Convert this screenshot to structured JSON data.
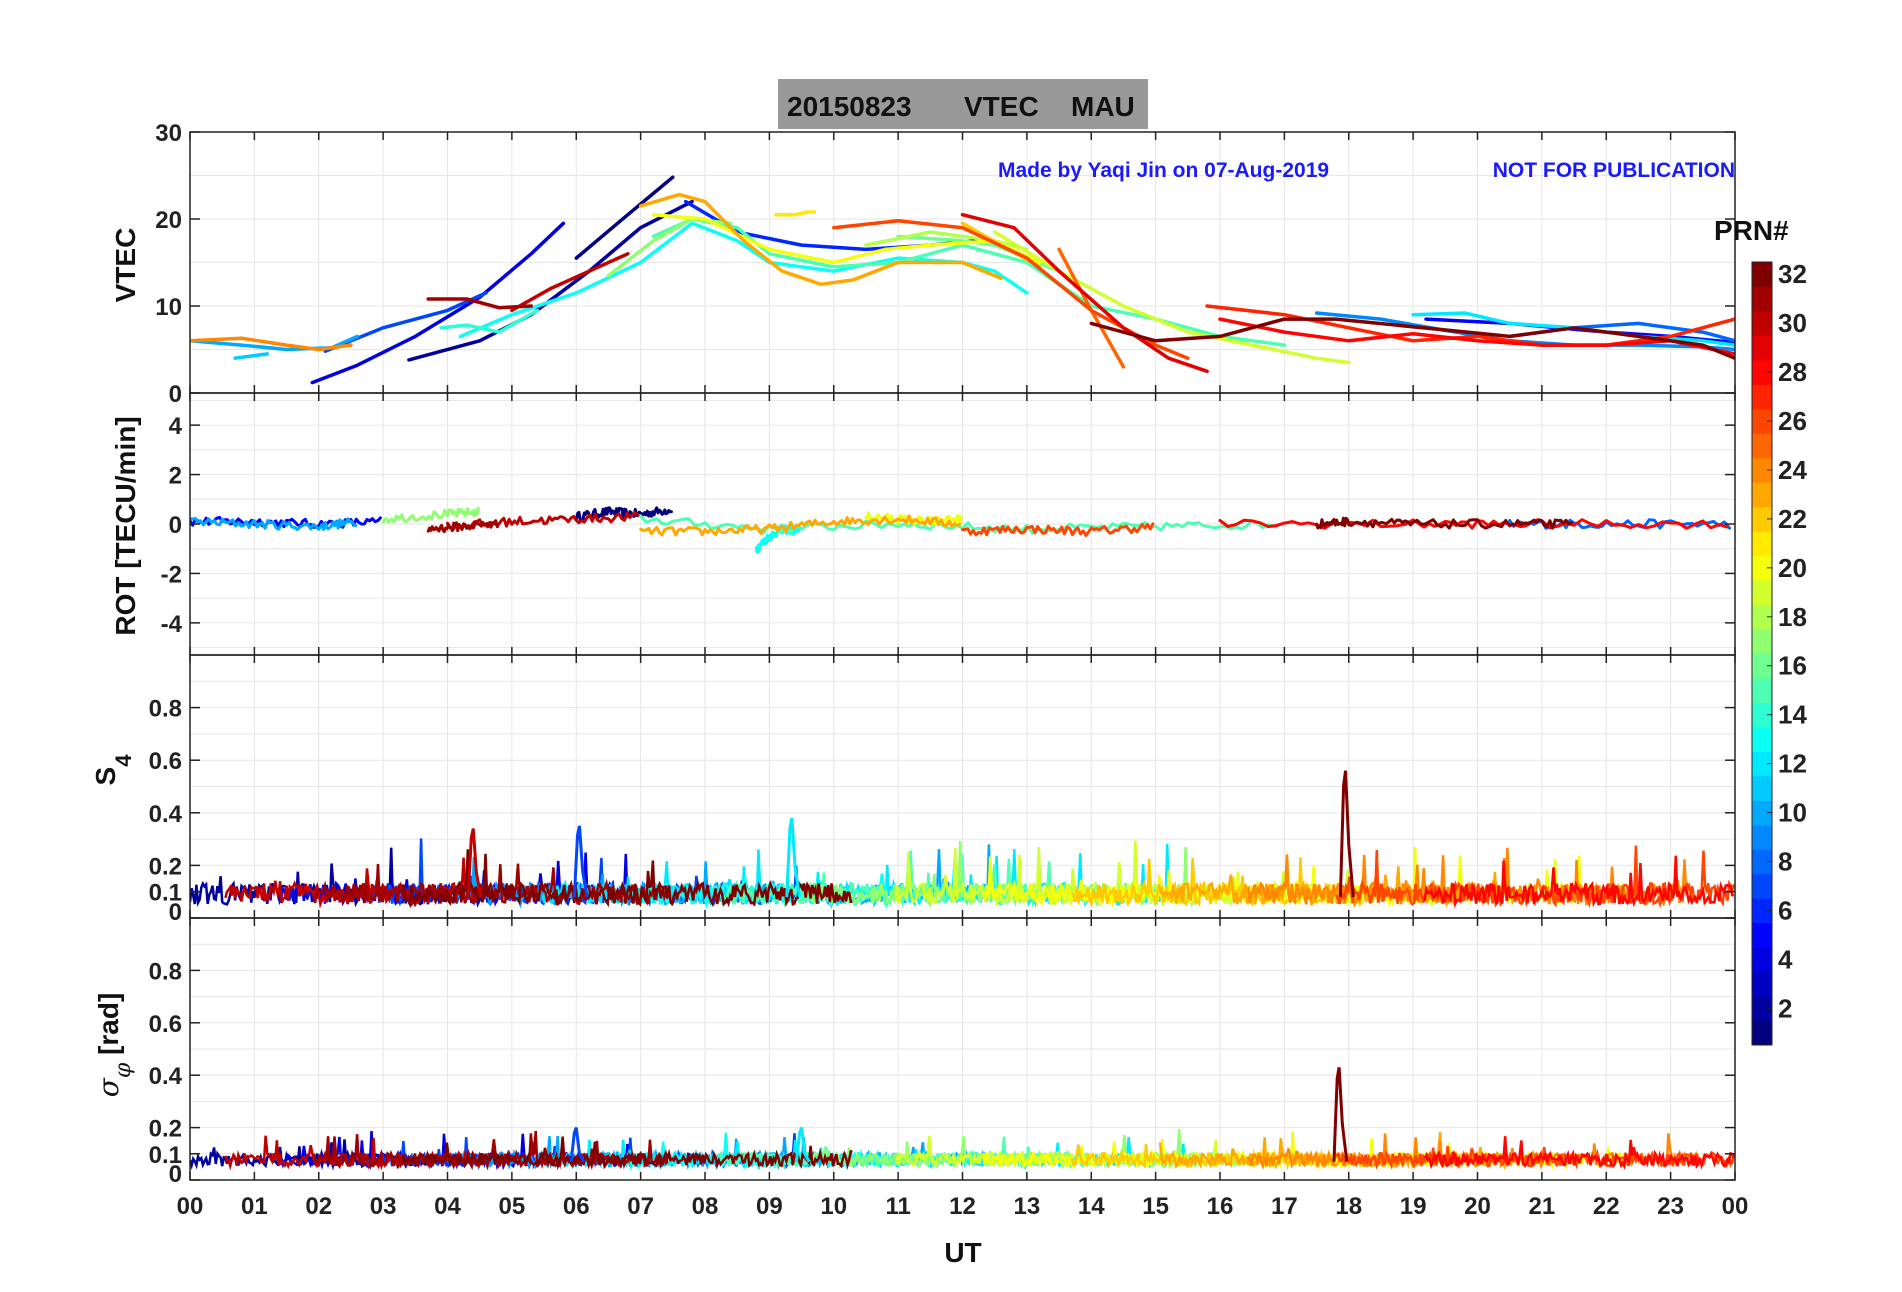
{
  "figure": {
    "title_date": "20150823",
    "title_param": "VTEC",
    "title_station": "MAU",
    "credit": "Made by Yaqi Jin on 07-Aug-2019",
    "notice": "NOT FOR PUBLICATION",
    "xlabel": "UT",
    "colorbar_label": "PRN#",
    "colors": {
      "title_bg": "#999999",
      "credit_text": "#1a1aff",
      "grid": "#e6e6e6"
    }
  },
  "chart_data": [
    {
      "type": "line",
      "panel": "vtec",
      "ylabel": "VTEC",
      "ylim": [
        0,
        30
      ],
      "yticks": [
        "0",
        "10",
        "20",
        "30"
      ],
      "xlim": [
        0,
        24
      ],
      "xticks": [
        "00",
        "01",
        "02",
        "03",
        "04",
        "05",
        "06",
        "07",
        "08",
        "09",
        "10",
        "11",
        "12",
        "13",
        "14",
        "15",
        "16",
        "17",
        "18",
        "19",
        "20",
        "21",
        "22",
        "23",
        "00"
      ],
      "series": [
        {
          "prn": 1,
          "x": [
            6.0,
            6.8,
            7.5
          ],
          "y": [
            15.5,
            20.5,
            24.8
          ]
        },
        {
          "prn": 2,
          "x": [
            3.4,
            4.5,
            5.3,
            6.2,
            7.0,
            7.8
          ],
          "y": [
            3.8,
            6.0,
            9.0,
            14.0,
            19.0,
            22.0
          ]
        },
        {
          "prn": 4,
          "x": [
            1.9,
            2.6,
            3.5,
            4.5,
            5.3,
            5.8
          ],
          "y": [
            1.2,
            3.2,
            6.5,
            11.0,
            16.0,
            19.5
          ]
        },
        {
          "prn": 5,
          "x": [
            19.2,
            20.5,
            22.0,
            23.0,
            24.0
          ],
          "y": [
            8.5,
            8.0,
            7.0,
            6.5,
            5.8
          ]
        },
        {
          "prn": 6,
          "x": [
            7.7,
            8.5,
            9.5,
            10.5,
            11.5,
            12.2
          ],
          "y": [
            22.0,
            18.5,
            17.0,
            16.5,
            17.0,
            17.5
          ]
        },
        {
          "prn": 7,
          "x": [
            2.1,
            3.0,
            4.0,
            4.6
          ],
          "y": [
            4.8,
            7.5,
            9.5,
            11.5
          ]
        },
        {
          "prn": 8,
          "x": [
            20.5,
            21.5,
            22.5,
            23.5,
            24.0
          ],
          "y": [
            6.5,
            7.5,
            8.0,
            7.0,
            6.0
          ]
        },
        {
          "prn": 9,
          "x": [
            17.5,
            18.5,
            19.5,
            20.5,
            21.5,
            22.5,
            23.5,
            24.0
          ],
          "y": [
            9.2,
            8.5,
            7.2,
            6.0,
            5.5,
            5.5,
            5.3,
            5.0
          ]
        },
        {
          "prn": 10,
          "x": [
            0.0,
            0.8,
            1.5,
            2.2,
            2.6
          ],
          "y": [
            6.0,
            5.5,
            5.0,
            5.2,
            6.5
          ]
        },
        {
          "prn": 11,
          "x": [
            0.7,
            1.2
          ],
          "y": [
            4.0,
            4.5
          ]
        },
        {
          "prn": 12,
          "x": [
            19.0,
            19.8,
            20.5,
            21.5,
            22.5,
            23.5,
            24.0
          ],
          "y": [
            9.0,
            9.2,
            8.0,
            7.5,
            6.5,
            6.0,
            5.5
          ]
        },
        {
          "prn": 13,
          "x": [
            4.2,
            5.0,
            6.0,
            7.0,
            7.8,
            8.5,
            9.0,
            10.0,
            11.0,
            12.0,
            12.5,
            13.0
          ],
          "y": [
            6.5,
            9.0,
            11.5,
            15.0,
            19.5,
            17.5,
            15.0,
            14.0,
            15.5,
            15.0,
            14.0,
            11.5
          ]
        },
        {
          "prn": 14,
          "x": [
            3.9,
            4.3,
            4.8,
            5.4
          ],
          "y": [
            7.5,
            7.8,
            7.0,
            9.5
          ]
        },
        {
          "prn": 15,
          "x": [
            7.2,
            7.8,
            8.5,
            9.0,
            10.0,
            11.0,
            12.0,
            13.0,
            14.0,
            15.0,
            16.0,
            17.0
          ],
          "y": [
            18.0,
            20.0,
            19.0,
            16.0,
            14.5,
            15.0,
            17.0,
            15.0,
            10.0,
            8.5,
            6.5,
            5.5
          ]
        },
        {
          "prn": 16,
          "x": [
            11.0,
            12.0,
            12.5,
            13.5
          ],
          "y": [
            18.0,
            17.5,
            17.0,
            14.0
          ]
        },
        {
          "prn": 17,
          "x": [
            6.5,
            7.2,
            7.8,
            8.4
          ],
          "y": [
            13.5,
            17.5,
            20.0,
            19.5
          ]
        },
        {
          "prn": 18,
          "x": [
            10.5,
            11.5,
            12.5,
            13.0
          ],
          "y": [
            17.0,
            18.5,
            17.5,
            16.5
          ]
        },
        {
          "prn": 19,
          "x": [
            12.5,
            13.5,
            14.5,
            15.5,
            16.5,
            17.5,
            18.0
          ],
          "y": [
            18.5,
            14.0,
            10.0,
            7.0,
            5.5,
            4.0,
            3.5
          ]
        },
        {
          "prn": 20,
          "x": [
            7.2,
            8.0,
            9.0,
            10.0,
            10.8,
            11.5,
            12.5,
            13.2
          ],
          "y": [
            20.5,
            20.0,
            16.5,
            15.0,
            16.5,
            17.0,
            17.5,
            15.0
          ]
        },
        {
          "prn": 21,
          "x": [
            9.1,
            9.4,
            9.6,
            9.7
          ],
          "y": [
            20.5,
            20.5,
            20.8,
            20.8
          ]
        },
        {
          "prn": 22,
          "x": [
            12.0,
            12.6,
            13.2
          ],
          "y": [
            19.5,
            17.0,
            14.5
          ]
        },
        {
          "prn": 23,
          "x": [
            7.0,
            7.6,
            8.0,
            8.6,
            9.2,
            9.8,
            10.3,
            11.0,
            12.0,
            12.6
          ],
          "y": [
            21.5,
            22.8,
            22.0,
            17.5,
            14.0,
            12.5,
            13.0,
            15.0,
            15.0,
            13.2
          ]
        },
        {
          "prn": 24,
          "x": [
            0.0,
            0.8,
            1.5,
            2.0,
            2.5
          ],
          "y": [
            6.0,
            6.3,
            5.5,
            5.0,
            5.5
          ]
        },
        {
          "prn": 25,
          "x": [
            13.5,
            14.0,
            14.5
          ],
          "y": [
            16.5,
            9.5,
            3.0
          ]
        },
        {
          "prn": 26,
          "x": [
            10.0,
            11.0,
            12.0,
            13.0,
            14.0,
            15.0,
            15.5
          ],
          "y": [
            19.0,
            19.8,
            19.0,
            15.5,
            9.5,
            5.5,
            4.0
          ]
        },
        {
          "prn": 27,
          "x": [
            15.8,
            17.0,
            18.0,
            19.0,
            20.0,
            21.0,
            22.0,
            23.0,
            24.0
          ],
          "y": [
            10.0,
            9.0,
            7.5,
            6.0,
            6.5,
            5.5,
            5.5,
            6.5,
            8.5
          ]
        },
        {
          "prn": 28,
          "x": [
            16.0,
            17.0,
            18.0,
            19.0,
            20.0,
            21.0,
            22.0,
            23.0,
            24.0
          ],
          "y": [
            8.5,
            7.0,
            6.0,
            6.8,
            6.0,
            5.5,
            5.5,
            6.0,
            4.5
          ]
        },
        {
          "prn": 29,
          "x": [
            12.0,
            12.8,
            13.5,
            14.5,
            15.2,
            15.8
          ],
          "y": [
            20.5,
            19.0,
            14.0,
            7.5,
            4.0,
            2.5
          ]
        },
        {
          "prn": 30,
          "x": [
            5.0,
            5.6,
            6.2,
            6.8
          ],
          "y": [
            9.5,
            12.0,
            14.0,
            16.0
          ]
        },
        {
          "prn": 31,
          "x": [
            3.7,
            4.3,
            4.8,
            5.3
          ],
          "y": [
            10.8,
            10.8,
            9.8,
            10.0
          ]
        },
        {
          "prn": 32,
          "x": [
            14.0,
            15.0,
            16.0,
            17.0,
            17.8,
            20.5,
            21.5,
            22.5,
            23.5,
            24.0
          ],
          "y": [
            8.0,
            6.0,
            6.5,
            8.5,
            8.5,
            6.5,
            7.5,
            6.5,
            5.5,
            4.0
          ]
        }
      ]
    },
    {
      "type": "line",
      "panel": "rot",
      "ylabel": "ROT [TECU/min]",
      "ylim": [
        -5.3,
        5.3
      ],
      "yticks": [
        "-4",
        "-2",
        "0",
        "2",
        "4"
      ],
      "xlim": [
        0,
        24
      ],
      "description_values": "noisy series near 0, amplitude about 0.2 TECU/min",
      "series": [
        {
          "prn": 1,
          "x": [
            6.0,
            6.5,
            7.0,
            7.5
          ],
          "y": [
            0.3,
            0.5,
            0.4,
            0.6
          ]
        },
        {
          "prn": 5,
          "x": [
            0.0,
            1.0,
            2.0,
            3.0
          ],
          "y": [
            0.1,
            0.1,
            0.0,
            0.1
          ]
        },
        {
          "prn": 8,
          "x": [
            20.5,
            22.0,
            24.0
          ],
          "y": [
            0.0,
            0.0,
            0.0
          ]
        },
        {
          "prn": 10,
          "x": [
            0.0,
            1.0,
            2.0,
            2.6
          ],
          "y": [
            0.1,
            0.0,
            -0.1,
            0.1
          ]
        },
        {
          "prn": 13,
          "x": [
            8.8,
            9.0,
            9.2,
            9.5
          ],
          "y": [
            -1.0,
            -0.5,
            -0.2,
            -0.3
          ]
        },
        {
          "prn": 15,
          "x": [
            7.0,
            9.0,
            11.0,
            13.0,
            15.0,
            17.0
          ],
          "y": [
            0.2,
            -0.2,
            0.0,
            -0.2,
            -0.1,
            0.0
          ]
        },
        {
          "prn": 17,
          "x": [
            3.0,
            4.0,
            4.5
          ],
          "y": [
            0.2,
            0.4,
            0.5
          ]
        },
        {
          "prn": 20,
          "x": [
            10.5,
            11.0,
            11.5,
            12.0
          ],
          "y": [
            0.3,
            0.2,
            0.1,
            0.2
          ]
        },
        {
          "prn": 23,
          "x": [
            7.0,
            8.0,
            9.0,
            10.0,
            11.0,
            12.0
          ],
          "y": [
            -0.3,
            -0.3,
            -0.2,
            0.1,
            0.2,
            0.0
          ]
        },
        {
          "prn": 26,
          "x": [
            12.0,
            13.0,
            14.0,
            15.0
          ],
          "y": [
            -0.3,
            -0.2,
            -0.3,
            -0.1
          ]
        },
        {
          "prn": 28,
          "x": [
            16.0,
            19.0,
            21.0,
            24.0
          ],
          "y": [
            0.0,
            0.0,
            0.0,
            0.0
          ]
        },
        {
          "prn": 30,
          "x": [
            4.0,
            5.0,
            6.0,
            7.0
          ],
          "y": [
            -0.1,
            0.1,
            0.2,
            0.3
          ]
        },
        {
          "prn": 31,
          "x": [
            3.7,
            4.2,
            4.8
          ],
          "y": [
            -0.2,
            -0.1,
            0.0
          ]
        },
        {
          "prn": 32,
          "x": [
            17.5,
            18.0,
            19.0,
            20.5,
            21.5
          ],
          "y": [
            0.0,
            0.1,
            0.0,
            0.0,
            0.0
          ]
        }
      ]
    },
    {
      "type": "line",
      "panel": "s4",
      "ylabel": "S4",
      "ylim": [
        0,
        1.0
      ],
      "yticks": [
        "0",
        "0.1",
        "0.2",
        "0.4",
        "0.6",
        "0.8"
      ],
      "xlim": [
        0,
        24
      ],
      "description_values": "noisy baseline around 0.05–0.15; peaks ~0.38 near 09:30 (PRN ~12) and ~0.56 near 18:00 (PRN ~32)",
      "peaks": [
        {
          "prn": 32,
          "x": 17.95,
          "y": 0.56
        },
        {
          "prn": 12,
          "x": 9.35,
          "y": 0.38
        },
        {
          "prn": 7,
          "x": 6.05,
          "y": 0.35
        },
        {
          "prn": 30,
          "x": 4.4,
          "y": 0.34
        }
      ]
    },
    {
      "type": "line",
      "panel": "sigma_phi",
      "ylabel": "σφ [rad]",
      "ylim": [
        0,
        1.0
      ],
      "yticks": [
        "0",
        "0.1",
        "0.2",
        "0.4",
        "0.6",
        "0.8"
      ],
      "xlim": [
        0,
        24
      ],
      "description_values": "noisy baseline around 0.05–0.1; spike ~0.43 near 17:50 (PRN ~32)",
      "peaks": [
        {
          "prn": 32,
          "x": 17.85,
          "y": 0.43
        },
        {
          "prn": 12,
          "x": 9.5,
          "y": 0.2
        },
        {
          "prn": 7,
          "x": 6.0,
          "y": 0.2
        }
      ]
    }
  ],
  "colorbar": {
    "label": "PRN#",
    "min": 1,
    "max": 32,
    "ticks": [
      "2",
      "4",
      "6",
      "8",
      "10",
      "12",
      "14",
      "16",
      "18",
      "20",
      "22",
      "24",
      "26",
      "28",
      "30",
      "32"
    ],
    "colormap": "jet"
  }
}
